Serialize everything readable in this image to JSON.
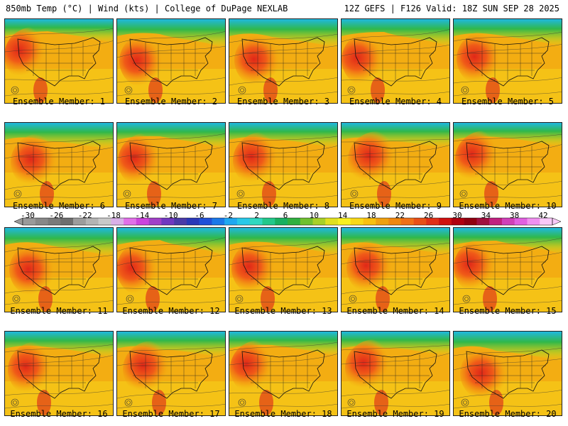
{
  "header": {
    "left_title": "850mb Temp (°C) | Wind (kts) | College of DuPage NEXLAB",
    "right_title": "12Z GEFS | F126 Valid: 18Z SUN SEP 28 2025"
  },
  "panels": [
    {
      "label": "Ensemble Member: 1"
    },
    {
      "label": "Ensemble Member: 2"
    },
    {
      "label": "Ensemble Member: 3"
    },
    {
      "label": "Ensemble Member: 4"
    },
    {
      "label": "Ensemble Member: 5"
    },
    {
      "label": "Ensemble Member: 6"
    },
    {
      "label": "Ensemble Member: 7"
    },
    {
      "label": "Ensemble Member: 8"
    },
    {
      "label": "Ensemble Member: 9"
    },
    {
      "label": "Ensemble Member: 10"
    },
    {
      "label": "Ensemble Member: 11"
    },
    {
      "label": "Ensemble Member: 12"
    },
    {
      "label": "Ensemble Member: 13"
    },
    {
      "label": "Ensemble Member: 14"
    },
    {
      "label": "Ensemble Member: 15"
    },
    {
      "label": "Ensemble Member: 16"
    },
    {
      "label": "Ensemble Member: 17"
    },
    {
      "label": "Ensemble Member: 18"
    },
    {
      "label": "Ensemble Member: 19"
    },
    {
      "label": "Ensemble Member: 20"
    }
  ],
  "colorbar": {
    "labels": [
      "-30",
      "-26",
      "-22",
      "-18",
      "-14",
      "-10",
      "-6",
      "-2",
      "2",
      "6",
      "10",
      "14",
      "18",
      "22",
      "26",
      "30",
      "34",
      "38",
      "42"
    ],
    "colors": [
      "#9a9a9a",
      "#888888",
      "#7a7a7a",
      "#6e6e6e",
      "#9c9c9c",
      "#b4b4b4",
      "#c9c9c9",
      "#d8b0e8",
      "#e070e8",
      "#cc44dd",
      "#a040c8",
      "#7038c0",
      "#4a3aa8",
      "#2a38b8",
      "#2050d8",
      "#1b78e8",
      "#20a8f0",
      "#28c8e8",
      "#30d8c0",
      "#22c88a",
      "#18b060",
      "#30b040",
      "#70c030",
      "#a8d028",
      "#e0e020",
      "#f8f020",
      "#f8d818",
      "#f8c010",
      "#f0a010",
      "#f08810",
      "#f07018",
      "#e85018",
      "#e03018",
      "#d01010",
      "#b00010",
      "#900010",
      "#a01040",
      "#c02080",
      "#d040b8",
      "#e060e0",
      "#f090f0",
      "#f8c8f8"
    ]
  }
}
